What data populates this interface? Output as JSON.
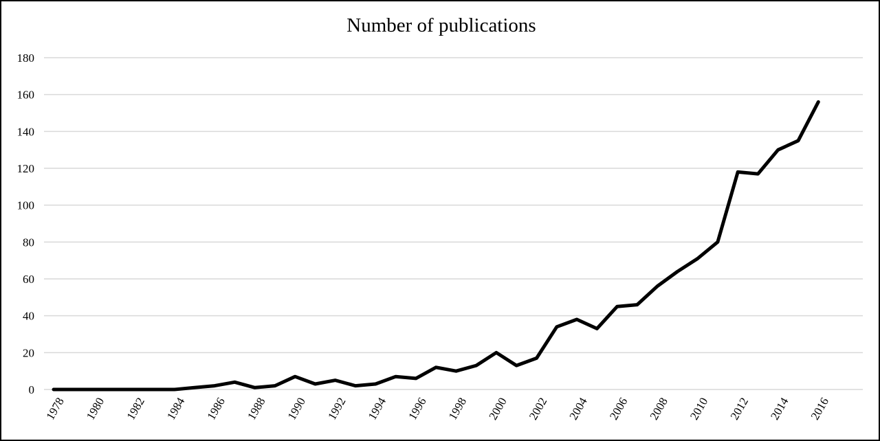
{
  "chart_data": {
    "type": "line",
    "title": "Number of publications",
    "xlabel": "",
    "ylabel": "",
    "ylim": [
      0,
      180
    ],
    "y_ticks": [
      0,
      20,
      40,
      60,
      80,
      100,
      120,
      140,
      160,
      180
    ],
    "x_ticks": [
      1978,
      1980,
      1982,
      1984,
      1986,
      1988,
      1990,
      1992,
      1994,
      1996,
      1998,
      2000,
      2002,
      2004,
      2006,
      2008,
      2010,
      2012,
      2014,
      2016
    ],
    "xlim": [
      1978,
      2017
    ],
    "grid": true,
    "legend": "none",
    "series": [
      {
        "color": "#000000",
        "x": [
          1978,
          1979,
          1980,
          1981,
          1982,
          1983,
          1984,
          1985,
          1986,
          1987,
          1988,
          1989,
          1990,
          1991,
          1992,
          1993,
          1994,
          1995,
          1996,
          1997,
          1998,
          1999,
          2000,
          2001,
          2002,
          2003,
          2004,
          2005,
          2006,
          2007,
          2008,
          2009,
          2010,
          2011,
          2012,
          2013,
          2014,
          2015,
          2016
        ],
        "values": [
          0,
          0,
          0,
          0,
          0,
          0,
          0,
          1,
          2,
          4,
          1,
          2,
          7,
          3,
          5,
          2,
          3,
          7,
          6,
          12,
          10,
          13,
          20,
          13,
          17,
          34,
          38,
          33,
          45,
          46,
          56,
          64,
          71,
          80,
          118,
          117,
          130,
          135,
          156
        ]
      }
    ]
  }
}
